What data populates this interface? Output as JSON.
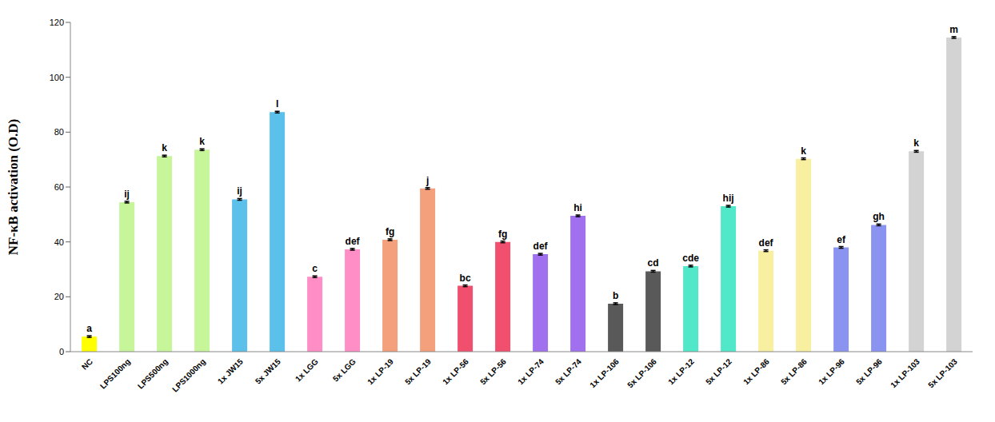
{
  "chart_data": {
    "type": "bar",
    "y_label": "NF-κB activation (O.D)",
    "categories": [
      "NC",
      "LPS100ng",
      "LPS500ng",
      "LPS1000ng",
      "1x JW15",
      "5x JW15",
      "1x LGG",
      "5x LGG",
      "1x LP-19",
      "5x LP-19",
      "1x LP-56",
      "5x LP-56",
      "1x LP-74",
      "5x LP-74",
      "1x LP-106",
      "5x LP-106",
      "1x LP-12",
      "5x LP-12",
      "1x LP-86",
      "5x LP-86",
      "1x LP-96",
      "5x LP-96",
      "1x LP-103",
      "5x LP-103"
    ],
    "values": [
      5.5,
      54.5,
      71.3,
      73.6,
      55.5,
      87.3,
      27.3,
      37.3,
      40.8,
      59.5,
      24,
      40,
      35.5,
      49.5,
      17.5,
      29.3,
      31.2,
      53,
      36.8,
      70.3,
      38,
      46.2,
      73,
      114.5
    ],
    "errors": [
      0.3,
      0.3,
      0.3,
      0.3,
      0.3,
      0.3,
      0.3,
      0.3,
      0.3,
      0.3,
      0.3,
      0.3,
      0.3,
      0.3,
      0.3,
      0.3,
      0.3,
      0.3,
      0.3,
      0.3,
      0.3,
      0.3,
      0.3,
      0.3
    ],
    "significance_labels": [
      "a",
      "ij",
      "k",
      "k",
      "ij",
      "l",
      "c",
      "def",
      "fg",
      "j",
      "bc",
      "fg",
      "def",
      "hi",
      "b",
      "cd",
      "cde",
      "hij",
      "def",
      "k",
      "ef",
      "gh",
      "k",
      "m"
    ],
    "colors": [
      "#ffff00",
      "#c6f59a",
      "#c6f59a",
      "#c6f59a",
      "#5bc0ea",
      "#5bc0ea",
      "#ff8ec6",
      "#ff8ec6",
      "#f4a07c",
      "#f4a07c",
      "#f0506e",
      "#f0506e",
      "#a070ee",
      "#a070ee",
      "#595959",
      "#595959",
      "#50e8c8",
      "#50e8c8",
      "#f8f0a0",
      "#f8f0a0",
      "#8a94f0",
      "#8a94f0",
      "#d3d3d3",
      "#d3d3d3"
    ],
    "ylim": [
      0,
      120
    ],
    "yticks": [
      0,
      20,
      40,
      60,
      80,
      100,
      120
    ],
    "grid": false
  }
}
